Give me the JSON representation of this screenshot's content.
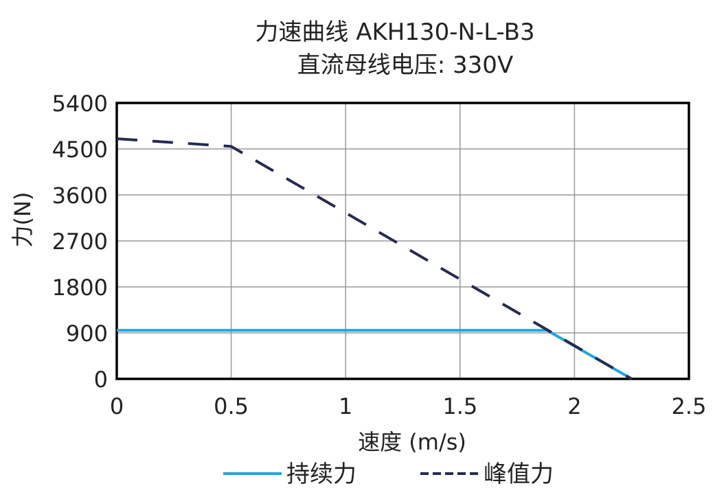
{
  "chart_data": {
    "type": "line",
    "title": "力速曲线 AKH130-N-L-B3",
    "subtitle": "直流母线电压: 330V",
    "xlabel": "速度 (m/s)",
    "ylabel": "力(N)",
    "xlim": [
      0,
      2.5
    ],
    "ylim": [
      0,
      5400
    ],
    "xticks": [
      0,
      0.5,
      1,
      1.5,
      2,
      2.5
    ],
    "xtick_labels": [
      "0",
      "0.5",
      "1",
      "1.5",
      "2",
      "2.5"
    ],
    "yticks": [
      0,
      900,
      1800,
      2700,
      3600,
      4500,
      5400
    ],
    "ytick_labels": [
      "0",
      "900",
      "1800",
      "2700",
      "3600",
      "4500",
      "5400"
    ],
    "grid": true,
    "legend_position": "bottom",
    "series": [
      {
        "name": "持续力",
        "color": "#1ea6e0",
        "style": "solid",
        "x": [
          0,
          1.88,
          2.25
        ],
        "y": [
          950,
          950,
          0
        ]
      },
      {
        "name": "峰值力",
        "color": "#262b4f",
        "style": "dashed",
        "x": [
          0,
          0.5,
          2.25
        ],
        "y": [
          4700,
          4550,
          0
        ]
      }
    ]
  }
}
